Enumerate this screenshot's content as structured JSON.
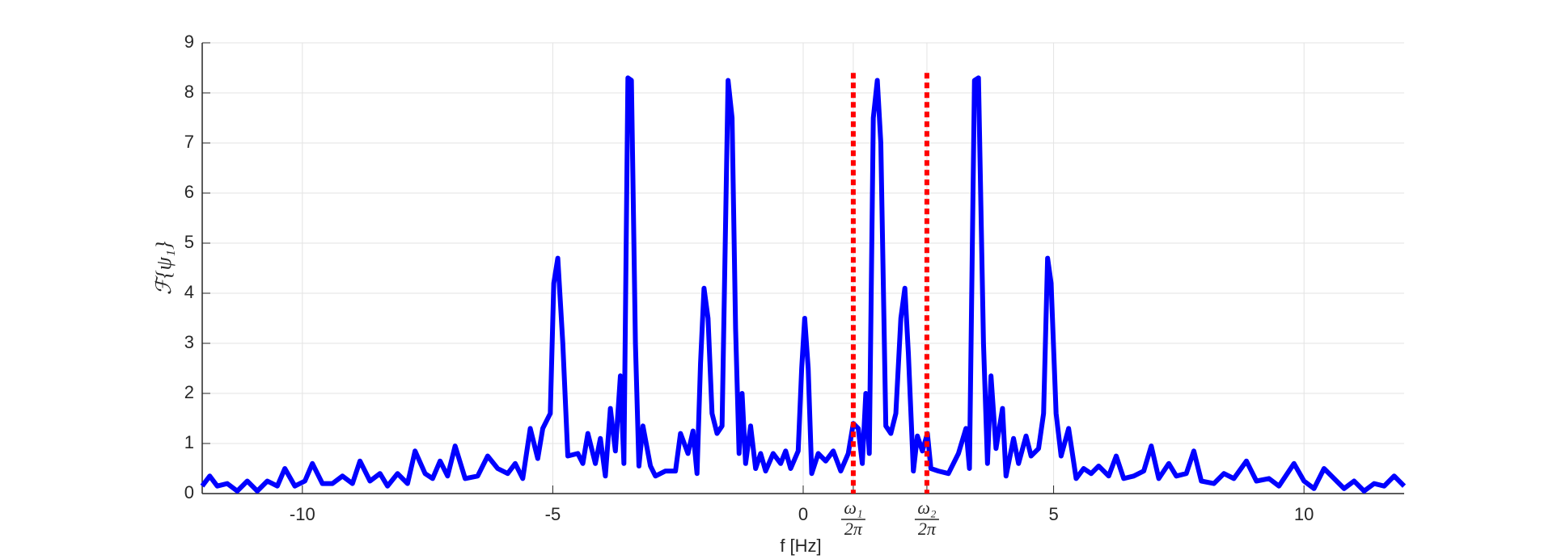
{
  "chart_data": {
    "type": "line",
    "xlabel": "f [Hz]",
    "ylabel": "ℱ{ψ₁}",
    "xlim": [
      -12,
      12
    ],
    "ylim": [
      0,
      9
    ],
    "xticks": [
      -10,
      -5,
      0,
      {
        "value": 1.0,
        "label": {
          "numerator": "ω₁",
          "denominator": "2π"
        }
      },
      {
        "value": 2.47,
        "label": {
          "numerator": "ω₂",
          "denominator": "2π"
        }
      },
      5,
      10
    ],
    "yticks": [
      0,
      1,
      2,
      3,
      4,
      5,
      6,
      7,
      8,
      9
    ],
    "grid": true,
    "series": [
      {
        "color": "#0000ff",
        "x": [
          -12,
          -11.85,
          -11.7,
          -11.5,
          -11.3,
          -11.1,
          -10.9,
          -10.7,
          -10.5,
          -10.35,
          -10.15,
          -9.95,
          -9.8,
          -9.6,
          -9.4,
          -9.2,
          -9.0,
          -8.85,
          -8.65,
          -8.45,
          -8.3,
          -8.1,
          -7.9,
          -7.75,
          -7.55,
          -7.4,
          -7.25,
          -7.1,
          -6.95,
          -6.75,
          -6.5,
          -6.3,
          -6.1,
          -5.9,
          -5.75,
          -5.6,
          -5.45,
          -5.3,
          -5.2,
          -5.05,
          -4.98,
          -4.9,
          -4.8,
          -4.7,
          -4.5,
          -4.4,
          -4.3,
          -4.15,
          -4.05,
          -3.95,
          -3.85,
          -3.75,
          -3.65,
          -3.58,
          -3.5,
          -3.43,
          -3.35,
          -3.28,
          -3.2,
          -3.05,
          -2.95,
          -2.75,
          -2.55,
          -2.45,
          -2.3,
          -2.2,
          -2.12,
          -2.05,
          -1.98,
          -1.9,
          -1.82,
          -1.72,
          -1.62,
          -1.5,
          -1.42,
          -1.35,
          -1.28,
          -1.22,
          -1.15,
          -1.05,
          -0.95,
          -0.85,
          -0.75,
          -0.6,
          -0.45,
          -0.35,
          -0.25,
          -0.1,
          -0.03,
          0.03,
          0.1,
          0.17,
          0.3,
          0.45,
          0.6,
          0.75,
          0.9,
          1.0,
          1.1,
          1.18,
          1.25,
          1.32,
          1.4,
          1.48,
          1.55,
          1.65,
          1.75,
          1.85,
          1.95,
          2.03,
          2.1,
          2.2,
          2.28,
          2.38,
          2.48,
          2.55,
          2.7,
          2.9,
          3.1,
          3.25,
          3.32,
          3.42,
          3.5,
          3.6,
          3.68,
          3.75,
          3.85,
          3.98,
          4.05,
          4.2,
          4.3,
          4.45,
          4.55,
          4.7,
          4.8,
          4.88,
          4.95,
          5.05,
          5.15,
          5.3,
          5.45,
          5.6,
          5.75,
          5.9,
          6.1,
          6.25,
          6.4,
          6.6,
          6.8,
          6.95,
          7.1,
          7.3,
          7.45,
          7.65,
          7.8,
          7.95,
          8.2,
          8.4,
          8.6,
          8.85,
          9.05,
          9.3,
          9.5,
          9.8,
          10.0,
          10.2,
          10.4,
          10.6,
          10.8,
          11.0,
          11.2,
          11.4,
          11.6,
          11.8,
          12
        ],
        "values": [
          0.15,
          0.35,
          0.15,
          0.2,
          0.05,
          0.25,
          0.05,
          0.25,
          0.15,
          0.5,
          0.15,
          0.25,
          0.6,
          0.2,
          0.2,
          0.35,
          0.2,
          0.65,
          0.25,
          0.4,
          0.15,
          0.4,
          0.2,
          0.85,
          0.4,
          0.3,
          0.65,
          0.35,
          0.95,
          0.3,
          0.35,
          0.75,
          0.5,
          0.4,
          0.6,
          0.3,
          1.3,
          0.7,
          1.3,
          1.6,
          4.2,
          4.7,
          3.0,
          0.75,
          0.8,
          0.6,
          1.2,
          0.6,
          1.1,
          0.35,
          1.7,
          0.85,
          2.35,
          0.6,
          8.3,
          8.25,
          3.0,
          0.55,
          1.35,
          0.55,
          0.35,
          0.45,
          0.45,
          1.2,
          0.8,
          1.25,
          0.4,
          2.6,
          4.1,
          3.5,
          1.6,
          1.2,
          1.35,
          8.25,
          7.5,
          3.3,
          0.8,
          2.0,
          0.6,
          1.35,
          0.5,
          0.8,
          0.45,
          0.8,
          0.6,
          0.85,
          0.5,
          0.85,
          2.5,
          3.5,
          2.5,
          0.4,
          0.8,
          0.65,
          0.85,
          0.45,
          0.8,
          1.4,
          1.3,
          0.6,
          2.0,
          0.8,
          7.5,
          8.25,
          7.0,
          1.35,
          1.2,
          1.6,
          3.5,
          4.1,
          2.8,
          0.45,
          1.15,
          0.85,
          1.2,
          0.5,
          0.45,
          0.4,
          0.8,
          1.3,
          0.5,
          8.25,
          8.3,
          3.0,
          0.6,
          2.35,
          0.9,
          1.7,
          0.35,
          1.1,
          0.6,
          1.15,
          0.75,
          0.9,
          1.6,
          4.7,
          4.2,
          1.6,
          0.75,
          1.3,
          0.3,
          0.5,
          0.4,
          0.55,
          0.35,
          0.75,
          0.3,
          0.35,
          0.45,
          0.95,
          0.3,
          0.6,
          0.35,
          0.4,
          0.85,
          0.25,
          0.2,
          0.4,
          0.3,
          0.65,
          0.25,
          0.3,
          0.15,
          0.6,
          0.25,
          0.1,
          0.5,
          0.3,
          0.1,
          0.25,
          0.05,
          0.2,
          0.15,
          0.35,
          0.15
        ]
      }
    ],
    "vlines": [
      {
        "x": 1.0,
        "top": 8.4,
        "color": "#ff0000"
      },
      {
        "x": 2.47,
        "top": 8.4,
        "color": "#ff0000"
      }
    ]
  }
}
